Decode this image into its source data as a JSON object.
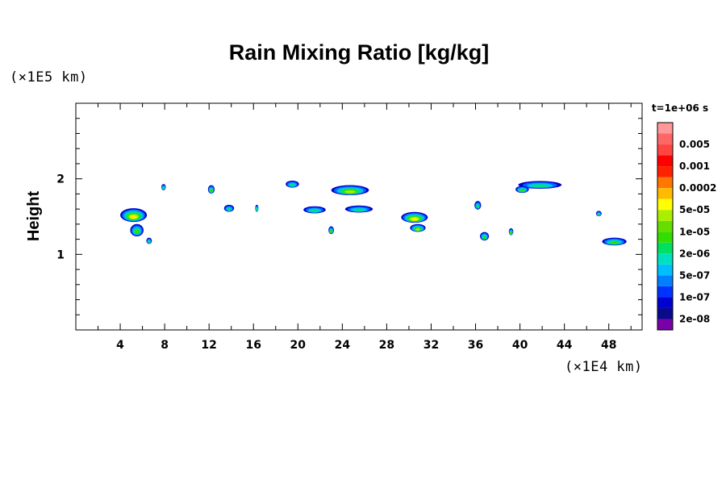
{
  "chart_data": {
    "type": "heatmap",
    "title": "Rain Mixing Ratio [kg/kg]",
    "ylabel": "Height",
    "x_unit": "(×1E4 km)",
    "y_unit": "(×1E5 km)",
    "time_label": "t=1e+06 s",
    "xlim": [
      0,
      51
    ],
    "ylim": [
      0,
      3
    ],
    "x_ticks": [
      {
        "value": 4,
        "label": "4"
      },
      {
        "value": 8,
        "label": "8"
      },
      {
        "value": 12,
        "label": "12"
      },
      {
        "value": 16,
        "label": "16"
      },
      {
        "value": 20,
        "label": "20"
      },
      {
        "value": 24,
        "label": "24"
      },
      {
        "value": 28,
        "label": "28"
      },
      {
        "value": 32,
        "label": "32"
      },
      {
        "value": 36,
        "label": "36"
      },
      {
        "value": 40,
        "label": "40"
      },
      {
        "value": 44,
        "label": "44"
      },
      {
        "value": 48,
        "label": "48"
      }
    ],
    "y_ticks": [
      {
        "value": 1,
        "label": "1"
      },
      {
        "value": 2,
        "label": "2"
      }
    ],
    "colorbar": {
      "colors": [
        "#7a00a8",
        "#0a0a8c",
        "#0000d0",
        "#0033ff",
        "#0080ff",
        "#00bfff",
        "#00e0c0",
        "#00e060",
        "#33dd00",
        "#66dd00",
        "#aaee00",
        "#ffff00",
        "#ffbb00",
        "#ff7700",
        "#ff2200",
        "#ff0000",
        "#ff4444",
        "#ff6666",
        "#ff9999"
      ],
      "labels": [
        "2e-08",
        "1e-07",
        "5e-07",
        "2e-06",
        "1e-05",
        "5e-05",
        "0.0002",
        "0.001",
        "0.005"
      ]
    },
    "clouds": [
      {
        "x": 5.2,
        "y": 1.52,
        "w": 2.4,
        "h": 0.14,
        "level": 4
      },
      {
        "x": 5.5,
        "y": 1.32,
        "w": 1.2,
        "h": 0.12,
        "level": 2
      },
      {
        "x": 6.6,
        "y": 1.18,
        "w": 0.5,
        "h": 0.04,
        "level": 1
      },
      {
        "x": 7.9,
        "y": 1.89,
        "w": 0.4,
        "h": 0.04,
        "level": 1
      },
      {
        "x": 12.2,
        "y": 1.86,
        "w": 0.6,
        "h": 0.07,
        "level": 2
      },
      {
        "x": 13.8,
        "y": 1.61,
        "w": 0.9,
        "h": 0.05,
        "level": 1
      },
      {
        "x": 16.3,
        "y": 1.61,
        "w": 0.3,
        "h": 0.05,
        "level": 1
      },
      {
        "x": 19.5,
        "y": 1.93,
        "w": 1.2,
        "h": 0.05,
        "level": 1
      },
      {
        "x": 24.7,
        "y": 1.85,
        "w": 3.4,
        "h": 0.09,
        "level": 3
      },
      {
        "x": 21.5,
        "y": 1.59,
        "w": 2.0,
        "h": 0.05,
        "level": 1
      },
      {
        "x": 25.5,
        "y": 1.6,
        "w": 2.5,
        "h": 0.05,
        "level": 1
      },
      {
        "x": 30.5,
        "y": 1.49,
        "w": 2.4,
        "h": 0.1,
        "level": 4
      },
      {
        "x": 30.8,
        "y": 1.35,
        "w": 1.4,
        "h": 0.06,
        "level": 3
      },
      {
        "x": 23.0,
        "y": 1.32,
        "w": 0.5,
        "h": 0.06,
        "level": 2
      },
      {
        "x": 36.2,
        "y": 1.65,
        "w": 0.6,
        "h": 0.07,
        "level": 1
      },
      {
        "x": 36.8,
        "y": 1.24,
        "w": 0.8,
        "h": 0.07,
        "level": 2
      },
      {
        "x": 39.2,
        "y": 1.3,
        "w": 0.4,
        "h": 0.05,
        "level": 2
      },
      {
        "x": 41.8,
        "y": 1.92,
        "w": 3.9,
        "h": 0.06,
        "level": 1
      },
      {
        "x": 40.2,
        "y": 1.86,
        "w": 1.2,
        "h": 0.05,
        "level": 2
      },
      {
        "x": 47.1,
        "y": 1.54,
        "w": 0.5,
        "h": 0.03,
        "level": 1
      },
      {
        "x": 48.5,
        "y": 1.17,
        "w": 2.2,
        "h": 0.06,
        "level": 2
      }
    ]
  }
}
